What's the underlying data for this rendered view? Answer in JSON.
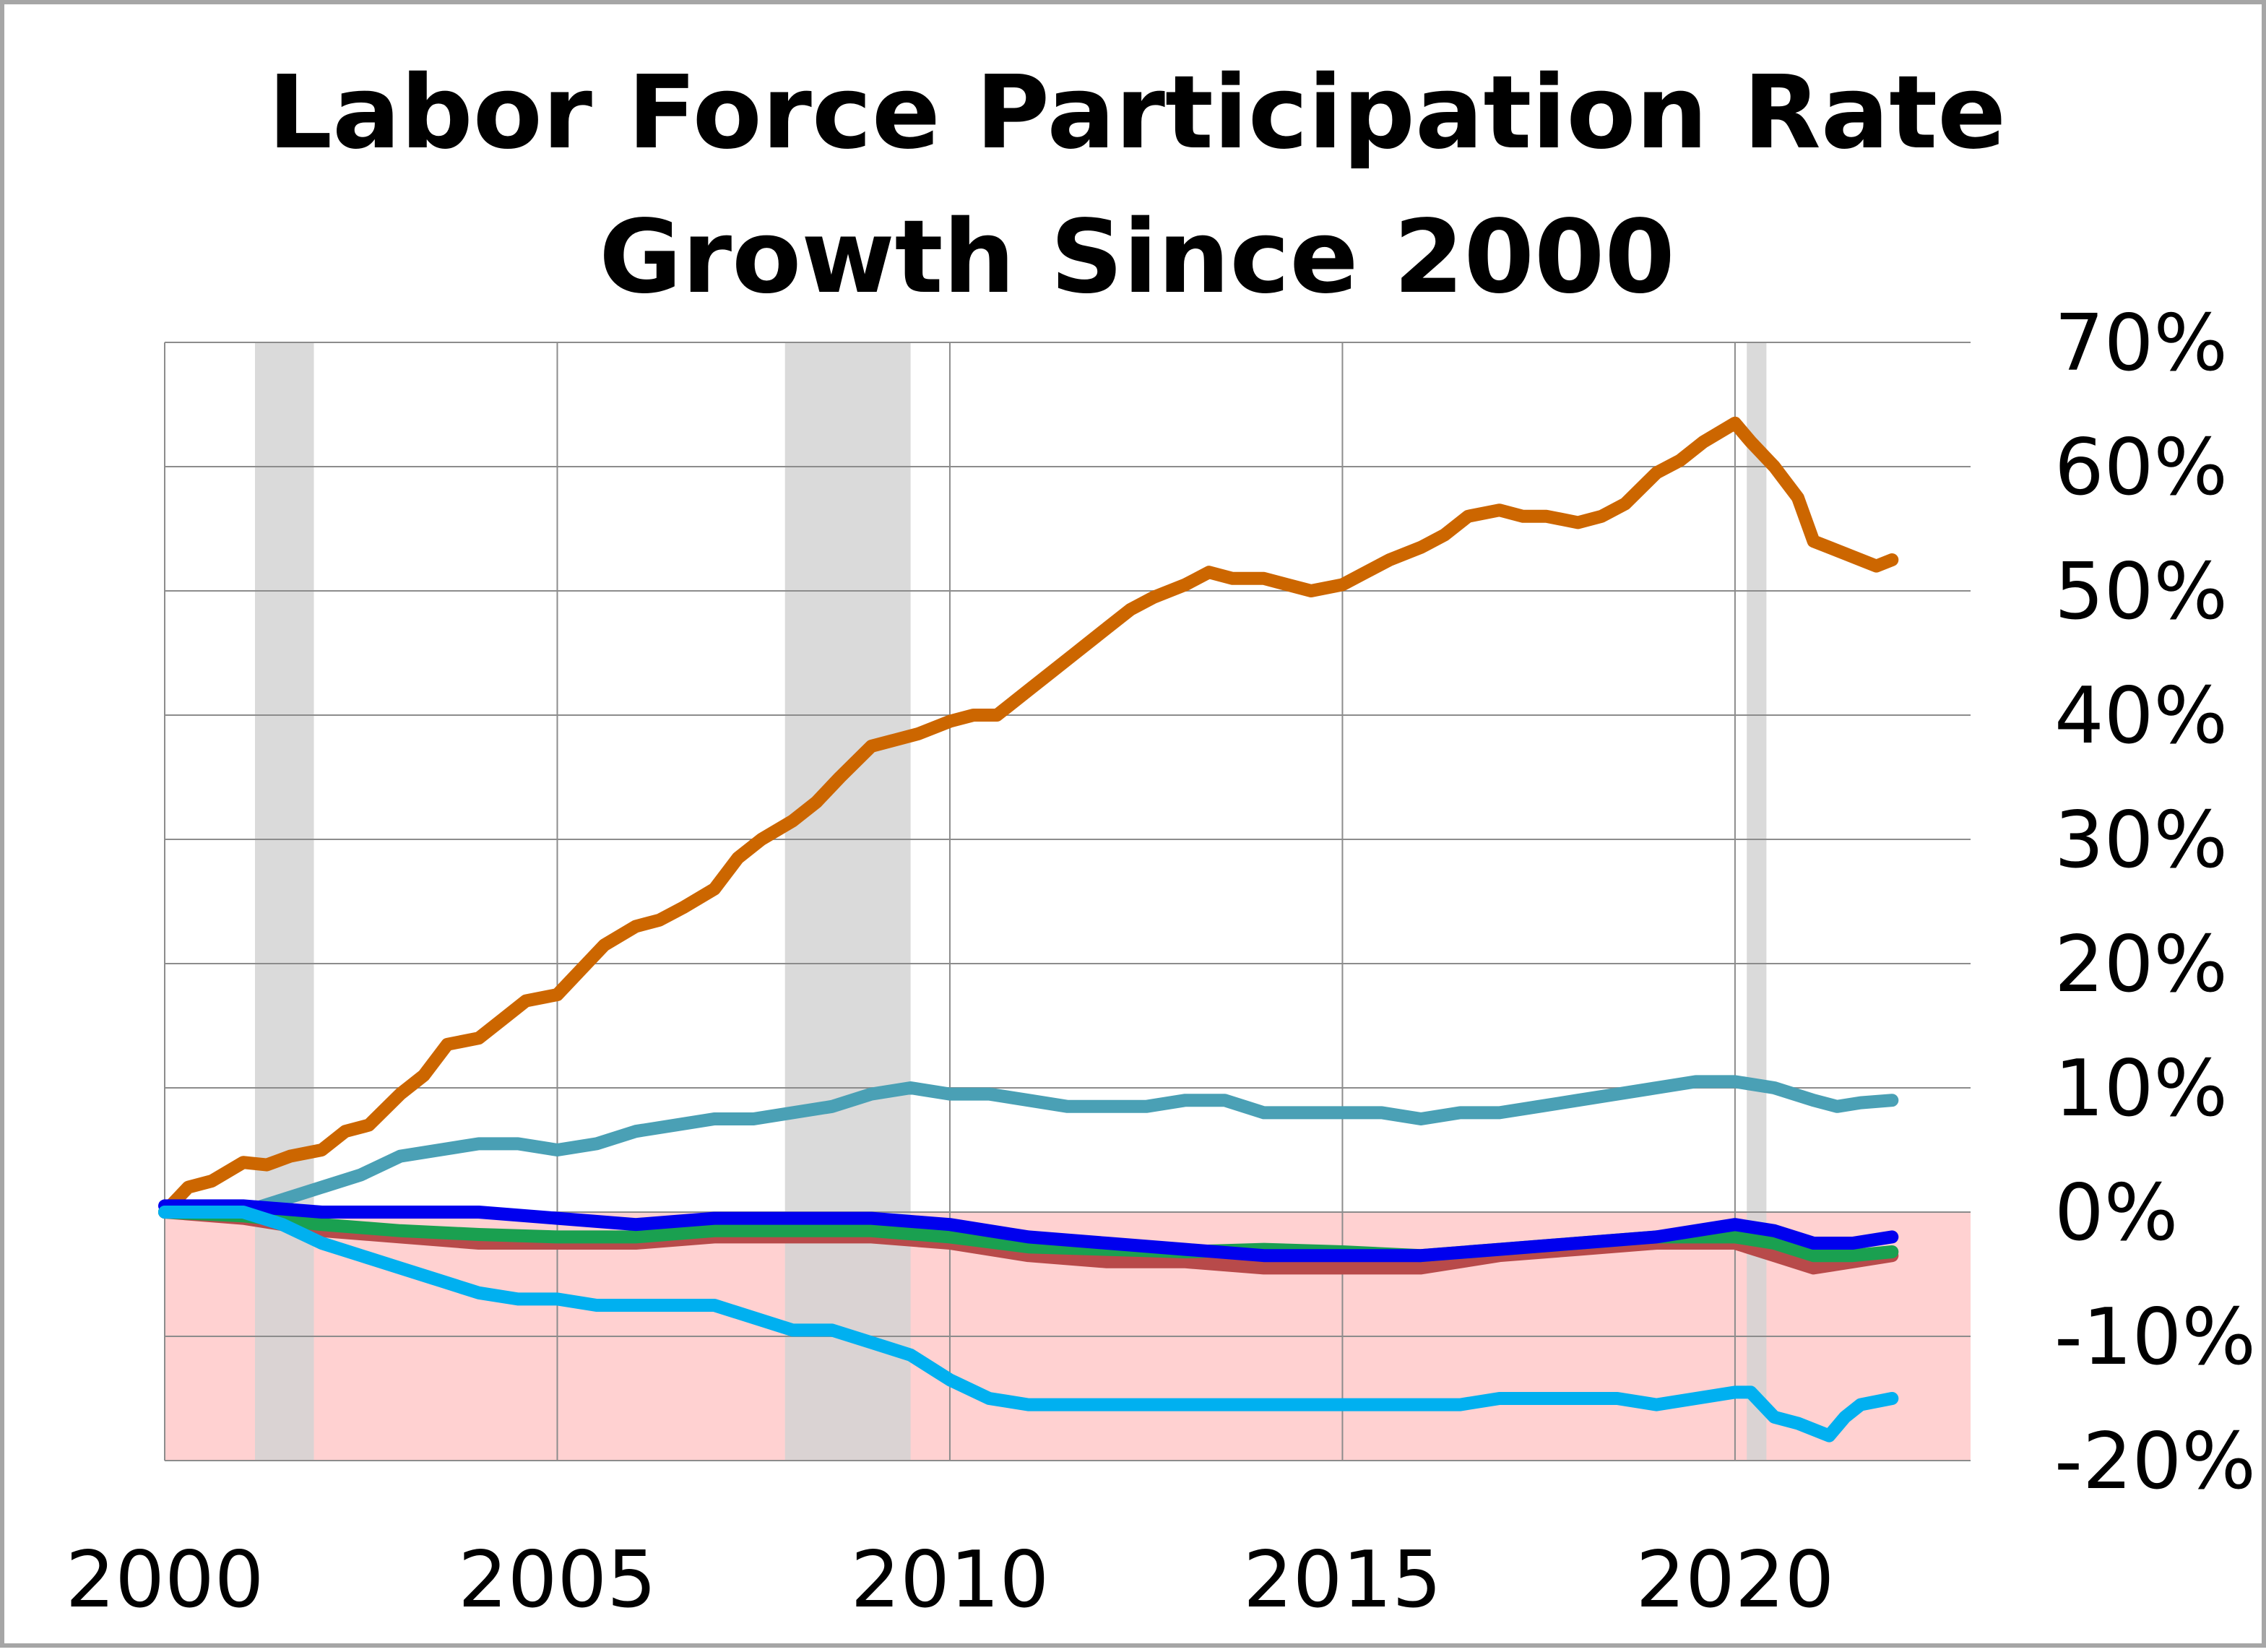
{
  "chart_data": {
    "type": "line",
    "title_lines": [
      "Labor Force Participation Rate",
      "Growth Since 2000"
    ],
    "x_tick_labels": [
      "2000",
      "2005",
      "2010",
      "2015",
      "2020"
    ],
    "x_ticks": [
      2000,
      2005,
      2010,
      2015,
      2020
    ],
    "y_tick_labels": [
      "70%",
      "60%",
      "50%",
      "40%",
      "30%",
      "20%",
      "10%",
      "0%",
      "-10%",
      "-20%"
    ],
    "y_ticks": [
      70,
      60,
      50,
      40,
      30,
      20,
      10,
      0,
      -10,
      -20
    ],
    "xlim": [
      2000,
      2023
    ],
    "ylim": [
      -20,
      70
    ],
    "grid": true,
    "negative_region_color": "#ffd1d1",
    "recessions": [
      {
        "start": 2001.15,
        "end": 2001.9
      },
      {
        "start": 2007.9,
        "end": 2009.5
      },
      {
        "start": 2020.15,
        "end": 2020.4
      }
    ],
    "recession_color": "#d3d3d3",
    "series": [
      {
        "name": "orange",
        "color": "#cc6600",
        "x": [
          2000.0,
          2000.3,
          2000.6,
          2001.0,
          2001.3,
          2001.6,
          2002.0,
          2002.3,
          2002.6,
          2003.0,
          2003.3,
          2003.6,
          2004.0,
          2004.3,
          2004.6,
          2005.0,
          2005.3,
          2005.6,
          2006.0,
          2006.3,
          2006.6,
          2007.0,
          2007.3,
          2007.6,
          2008.0,
          2008.3,
          2008.6,
          2009.0,
          2009.3,
          2009.6,
          2010.0,
          2010.3,
          2010.6,
          2011.0,
          2011.3,
          2011.6,
          2012.0,
          2012.3,
          2012.6,
          2013.0,
          2013.3,
          2013.6,
          2014.0,
          2014.3,
          2014.6,
          2015.0,
          2015.3,
          2015.6,
          2016.0,
          2016.3,
          2016.6,
          2017.0,
          2017.3,
          2017.6,
          2018.0,
          2018.3,
          2018.6,
          2019.0,
          2019.3,
          2019.6,
          2020.0,
          2020.2,
          2020.5,
          2020.8,
          2021.0,
          2021.2,
          2021.4,
          2021.6,
          2021.8,
          2022.0
        ],
        "y": [
          0.0,
          2.0,
          2.5,
          4.0,
          3.8,
          4.5,
          5.0,
          6.5,
          7.0,
          9.5,
          11.0,
          13.5,
          14.0,
          15.5,
          17.0,
          17.5,
          19.5,
          21.5,
          23.0,
          23.5,
          24.5,
          26.0,
          28.5,
          30.0,
          31.5,
          33.0,
          35.0,
          37.5,
          38.0,
          38.5,
          39.5,
          40.0,
          40.0,
          42.0,
          43.5,
          45.0,
          47.0,
          48.5,
          49.5,
          50.5,
          51.5,
          51.0,
          51.0,
          50.5,
          50.0,
          50.5,
          51.5,
          52.5,
          53.5,
          54.5,
          56.0,
          56.5,
          56.0,
          56.0,
          55.5,
          56.0,
          57.0,
          59.5,
          60.5,
          62.0,
          63.5,
          62.0,
          60.0,
          57.5,
          54.0,
          53.5,
          53.0,
          52.5,
          52.0,
          52.5
        ]
      },
      {
        "name": "teal",
        "color": "#4aa0b5",
        "x": [
          2000.0,
          2000.5,
          2001.0,
          2001.5,
          2002.0,
          2002.5,
          2003.0,
          2003.5,
          2004.0,
          2004.5,
          2005.0,
          2005.5,
          2006.0,
          2006.5,
          2007.0,
          2007.5,
          2008.0,
          2008.5,
          2009.0,
          2009.5,
          2010.0,
          2010.5,
          2011.0,
          2011.5,
          2012.0,
          2012.5,
          2013.0,
          2013.5,
          2014.0,
          2014.5,
          2015.0,
          2015.5,
          2016.0,
          2016.5,
          2017.0,
          2017.5,
          2018.0,
          2018.5,
          2019.0,
          2019.5,
          2020.0,
          2020.5,
          2021.0,
          2021.3,
          2021.6,
          2022.0
        ],
        "y": [
          0.0,
          0.0,
          0.0,
          1.0,
          2.0,
          3.0,
          4.5,
          5.0,
          5.5,
          5.5,
          5.0,
          5.5,
          6.5,
          7.0,
          7.5,
          7.5,
          8.0,
          8.5,
          9.5,
          10.0,
          9.5,
          9.5,
          9.0,
          8.5,
          8.5,
          8.5,
          9.0,
          9.0,
          8.0,
          8.0,
          8.0,
          8.0,
          7.5,
          8.0,
          8.0,
          8.5,
          9.0,
          9.5,
          10.0,
          10.5,
          10.5,
          10.0,
          9.0,
          8.5,
          8.8,
          9.0
        ]
      },
      {
        "name": "red",
        "color": "#b84a4a",
        "x": [
          2000.0,
          2001.0,
          2002.0,
          2003.0,
          2004.0,
          2005.0,
          2006.0,
          2007.0,
          2008.0,
          2009.0,
          2010.0,
          2011.0,
          2012.0,
          2013.0,
          2014.0,
          2015.0,
          2016.0,
          2017.0,
          2018.0,
          2019.0,
          2020.0,
          2020.5,
          2021.0,
          2021.5,
          2022.0
        ],
        "y": [
          0.0,
          -0.5,
          -1.5,
          -2.0,
          -2.5,
          -2.5,
          -2.5,
          -2.0,
          -2.0,
          -2.0,
          -2.5,
          -3.5,
          -4.0,
          -4.0,
          -4.5,
          -4.5,
          -4.5,
          -3.5,
          -3.0,
          -2.5,
          -2.5,
          -3.5,
          -4.5,
          -4.0,
          -3.5
        ]
      },
      {
        "name": "green",
        "color": "#1aa050",
        "x": [
          2000.0,
          2001.0,
          2002.0,
          2003.0,
          2004.0,
          2005.0,
          2006.0,
          2007.0,
          2008.0,
          2009.0,
          2010.0,
          2011.0,
          2012.0,
          2013.0,
          2014.0,
          2015.0,
          2016.0,
          2017.0,
          2018.0,
          2019.0,
          2020.0,
          2020.5,
          2021.0,
          2021.5,
          2022.0
        ],
        "y": [
          0.0,
          -0.3,
          -1.0,
          -1.5,
          -1.8,
          -2.0,
          -2.0,
          -1.5,
          -1.5,
          -1.5,
          -2.0,
          -2.8,
          -3.0,
          -3.2,
          -3.0,
          -3.2,
          -3.5,
          -3.0,
          -2.5,
          -2.0,
          -2.0,
          -2.5,
          -3.5,
          -3.5,
          -3.2
        ]
      },
      {
        "name": "blue",
        "color": "#0000ee",
        "x": [
          2000.0,
          2001.0,
          2002.0,
          2003.0,
          2004.0,
          2005.0,
          2006.0,
          2007.0,
          2008.0,
          2009.0,
          2010.0,
          2011.0,
          2012.0,
          2013.0,
          2014.0,
          2015.0,
          2016.0,
          2017.0,
          2018.0,
          2019.0,
          2020.0,
          2020.5,
          2021.0,
          2021.5,
          2022.0
        ],
        "y": [
          0.5,
          0.5,
          0.0,
          0.0,
          0.0,
          -0.5,
          -1.0,
          -0.5,
          -0.5,
          -0.5,
          -1.0,
          -2.0,
          -2.5,
          -3.0,
          -3.5,
          -3.5,
          -3.5,
          -3.0,
          -2.5,
          -2.0,
          -1.0,
          -1.5,
          -2.5,
          -2.5,
          -2.0
        ]
      },
      {
        "name": "light-blue",
        "color": "#00b0f0",
        "x": [
          2000.0,
          2001.0,
          2001.5,
          2002.0,
          2002.5,
          2003.0,
          2003.5,
          2004.0,
          2004.5,
          2005.0,
          2005.5,
          2006.0,
          2006.5,
          2007.0,
          2007.5,
          2008.0,
          2008.5,
          2009.0,
          2009.5,
          2010.0,
          2010.5,
          2011.0,
          2011.5,
          2012.0,
          2012.5,
          2013.0,
          2013.5,
          2014.0,
          2014.5,
          2015.0,
          2015.5,
          2016.0,
          2016.5,
          2017.0,
          2017.5,
          2018.0,
          2018.5,
          2019.0,
          2019.5,
          2020.0,
          2020.2,
          2020.5,
          2020.8,
          2021.0,
          2021.2,
          2021.4,
          2021.6,
          2022.0
        ],
        "y": [
          0.0,
          0.0,
          -1.0,
          -2.5,
          -3.5,
          -4.5,
          -5.5,
          -6.5,
          -7.0,
          -7.0,
          -7.5,
          -7.5,
          -7.5,
          -7.5,
          -8.5,
          -9.5,
          -9.5,
          -10.5,
          -11.5,
          -13.5,
          -15.0,
          -15.5,
          -15.5,
          -15.5,
          -15.5,
          -15.5,
          -15.5,
          -15.5,
          -15.5,
          -15.5,
          -15.5,
          -15.5,
          -15.5,
          -15.0,
          -15.0,
          -15.0,
          -15.0,
          -15.5,
          -15.0,
          -14.5,
          -14.5,
          -16.5,
          -17.0,
          -17.5,
          -18.0,
          -16.5,
          -15.5,
          -15.0
        ]
      }
    ]
  }
}
